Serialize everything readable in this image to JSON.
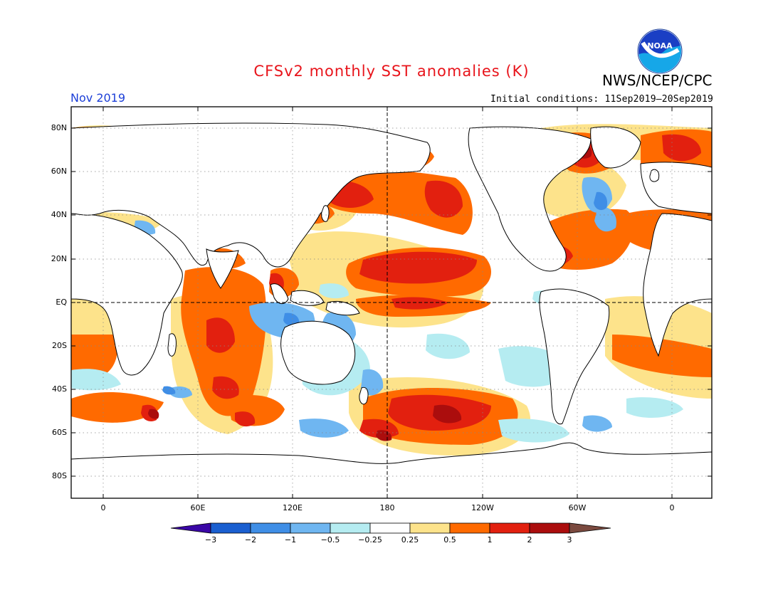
{
  "title": "CFSv2 monthly SST anomalies (K)",
  "agency": "NWS/NCEP/CPC",
  "period": "Nov 2019",
  "initial_conditions": "Initial conditions: 11Sep2019–20Sep2019",
  "logo_text": "NOAA",
  "lat_labels": [
    "80N",
    "60N",
    "40N",
    "20N",
    "EQ",
    "20S",
    "40S",
    "60S",
    "80S"
  ],
  "lon_labels": [
    "0",
    "60E",
    "120E",
    "180",
    "120W",
    "60W",
    "0"
  ],
  "colorbar": {
    "labels": [
      "−3",
      "−2",
      "−1",
      "−0.5",
      "−0.25",
      "0.25",
      "0.5",
      "1",
      "2",
      "3"
    ],
    "colors": [
      "#3a07a6",
      "#1a5fd0",
      "#3f8ee6",
      "#6fb6f1",
      "#b5ecf1",
      "#ffffff",
      "#fde38b",
      "#ff6a00",
      "#e2200f",
      "#ab0d0d",
      "#7b4a3f"
    ]
  },
  "anomaly_colors": {
    "weak_warm": "#fde38b",
    "warm": "#ff6a00",
    "strong_warm": "#e2200f",
    "very_strong_warm": "#ab0d0d",
    "weak_cool": "#b5ecf1",
    "cool": "#6fb6f1",
    "strong_cool": "#3f8ee6",
    "very_strong_cool": "#3a07a6"
  }
}
